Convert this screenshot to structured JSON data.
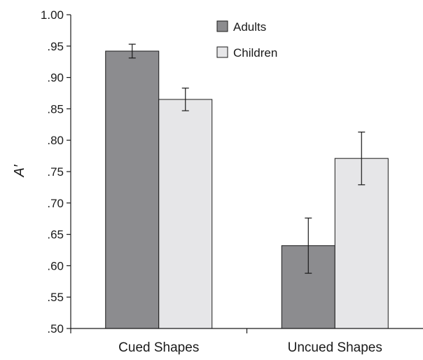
{
  "chart_data": {
    "type": "bar",
    "title": "",
    "xlabel": "",
    "ylabel": "A′",
    "ylim": [
      0.5,
      1.0
    ],
    "y_ticks": [
      0.5,
      0.55,
      0.6,
      0.65,
      0.7,
      0.75,
      0.8,
      0.85,
      0.9,
      0.95,
      1.0
    ],
    "y_tick_labels": [
      ".50",
      ".55",
      ".60",
      ".65",
      ".70",
      ".75",
      ".80",
      ".85",
      ".90",
      ".95",
      "1.00"
    ],
    "categories": [
      "Cued Shapes",
      "Uncued Shapes"
    ],
    "series": [
      {
        "name": "Adults",
        "color": "#8c8c8f",
        "values": [
          0.942,
          0.632
        ],
        "error": [
          0.011,
          0.044
        ]
      },
      {
        "name": "Children",
        "color": "#e6e6e8",
        "values": [
          0.865,
          0.771
        ],
        "error": [
          0.018,
          0.042
        ]
      }
    ],
    "legend": {
      "position": "top-right"
    },
    "grid": false
  }
}
